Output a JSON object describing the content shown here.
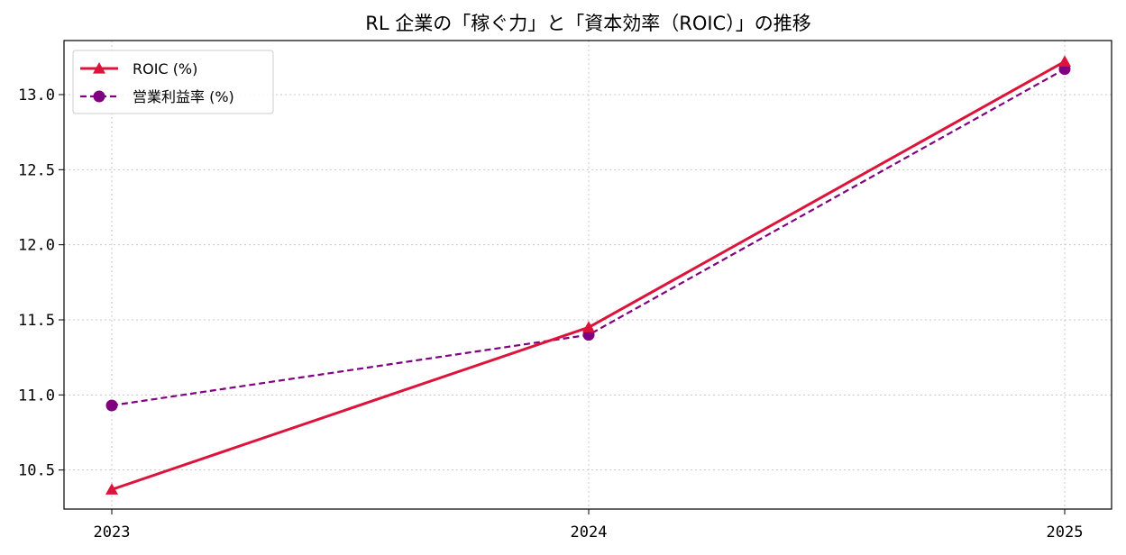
{
  "chart_data": {
    "type": "line",
    "title": "RL 企業の「稼ぐ力」と「資本効率（ROIC）」の推移",
    "xlabel": "",
    "ylabel": "",
    "categories": [
      "2023",
      "2024",
      "2025"
    ],
    "ylim": [
      10.24,
      13.36
    ],
    "yticks": [
      "10.5",
      "11.0",
      "11.5",
      "12.0",
      "12.5",
      "13.0"
    ],
    "grid": true,
    "legend_position": "top-left",
    "series": [
      {
        "name": "ROIC (%)",
        "values": [
          10.37,
          11.45,
          13.22
        ],
        "color": "#dc143c",
        "style": "solid",
        "marker": "triangle"
      },
      {
        "name": "営業利益率 (%)",
        "values": [
          10.93,
          11.4,
          13.17
        ],
        "color": "#800080",
        "style": "dashed",
        "marker": "circle"
      }
    ]
  }
}
